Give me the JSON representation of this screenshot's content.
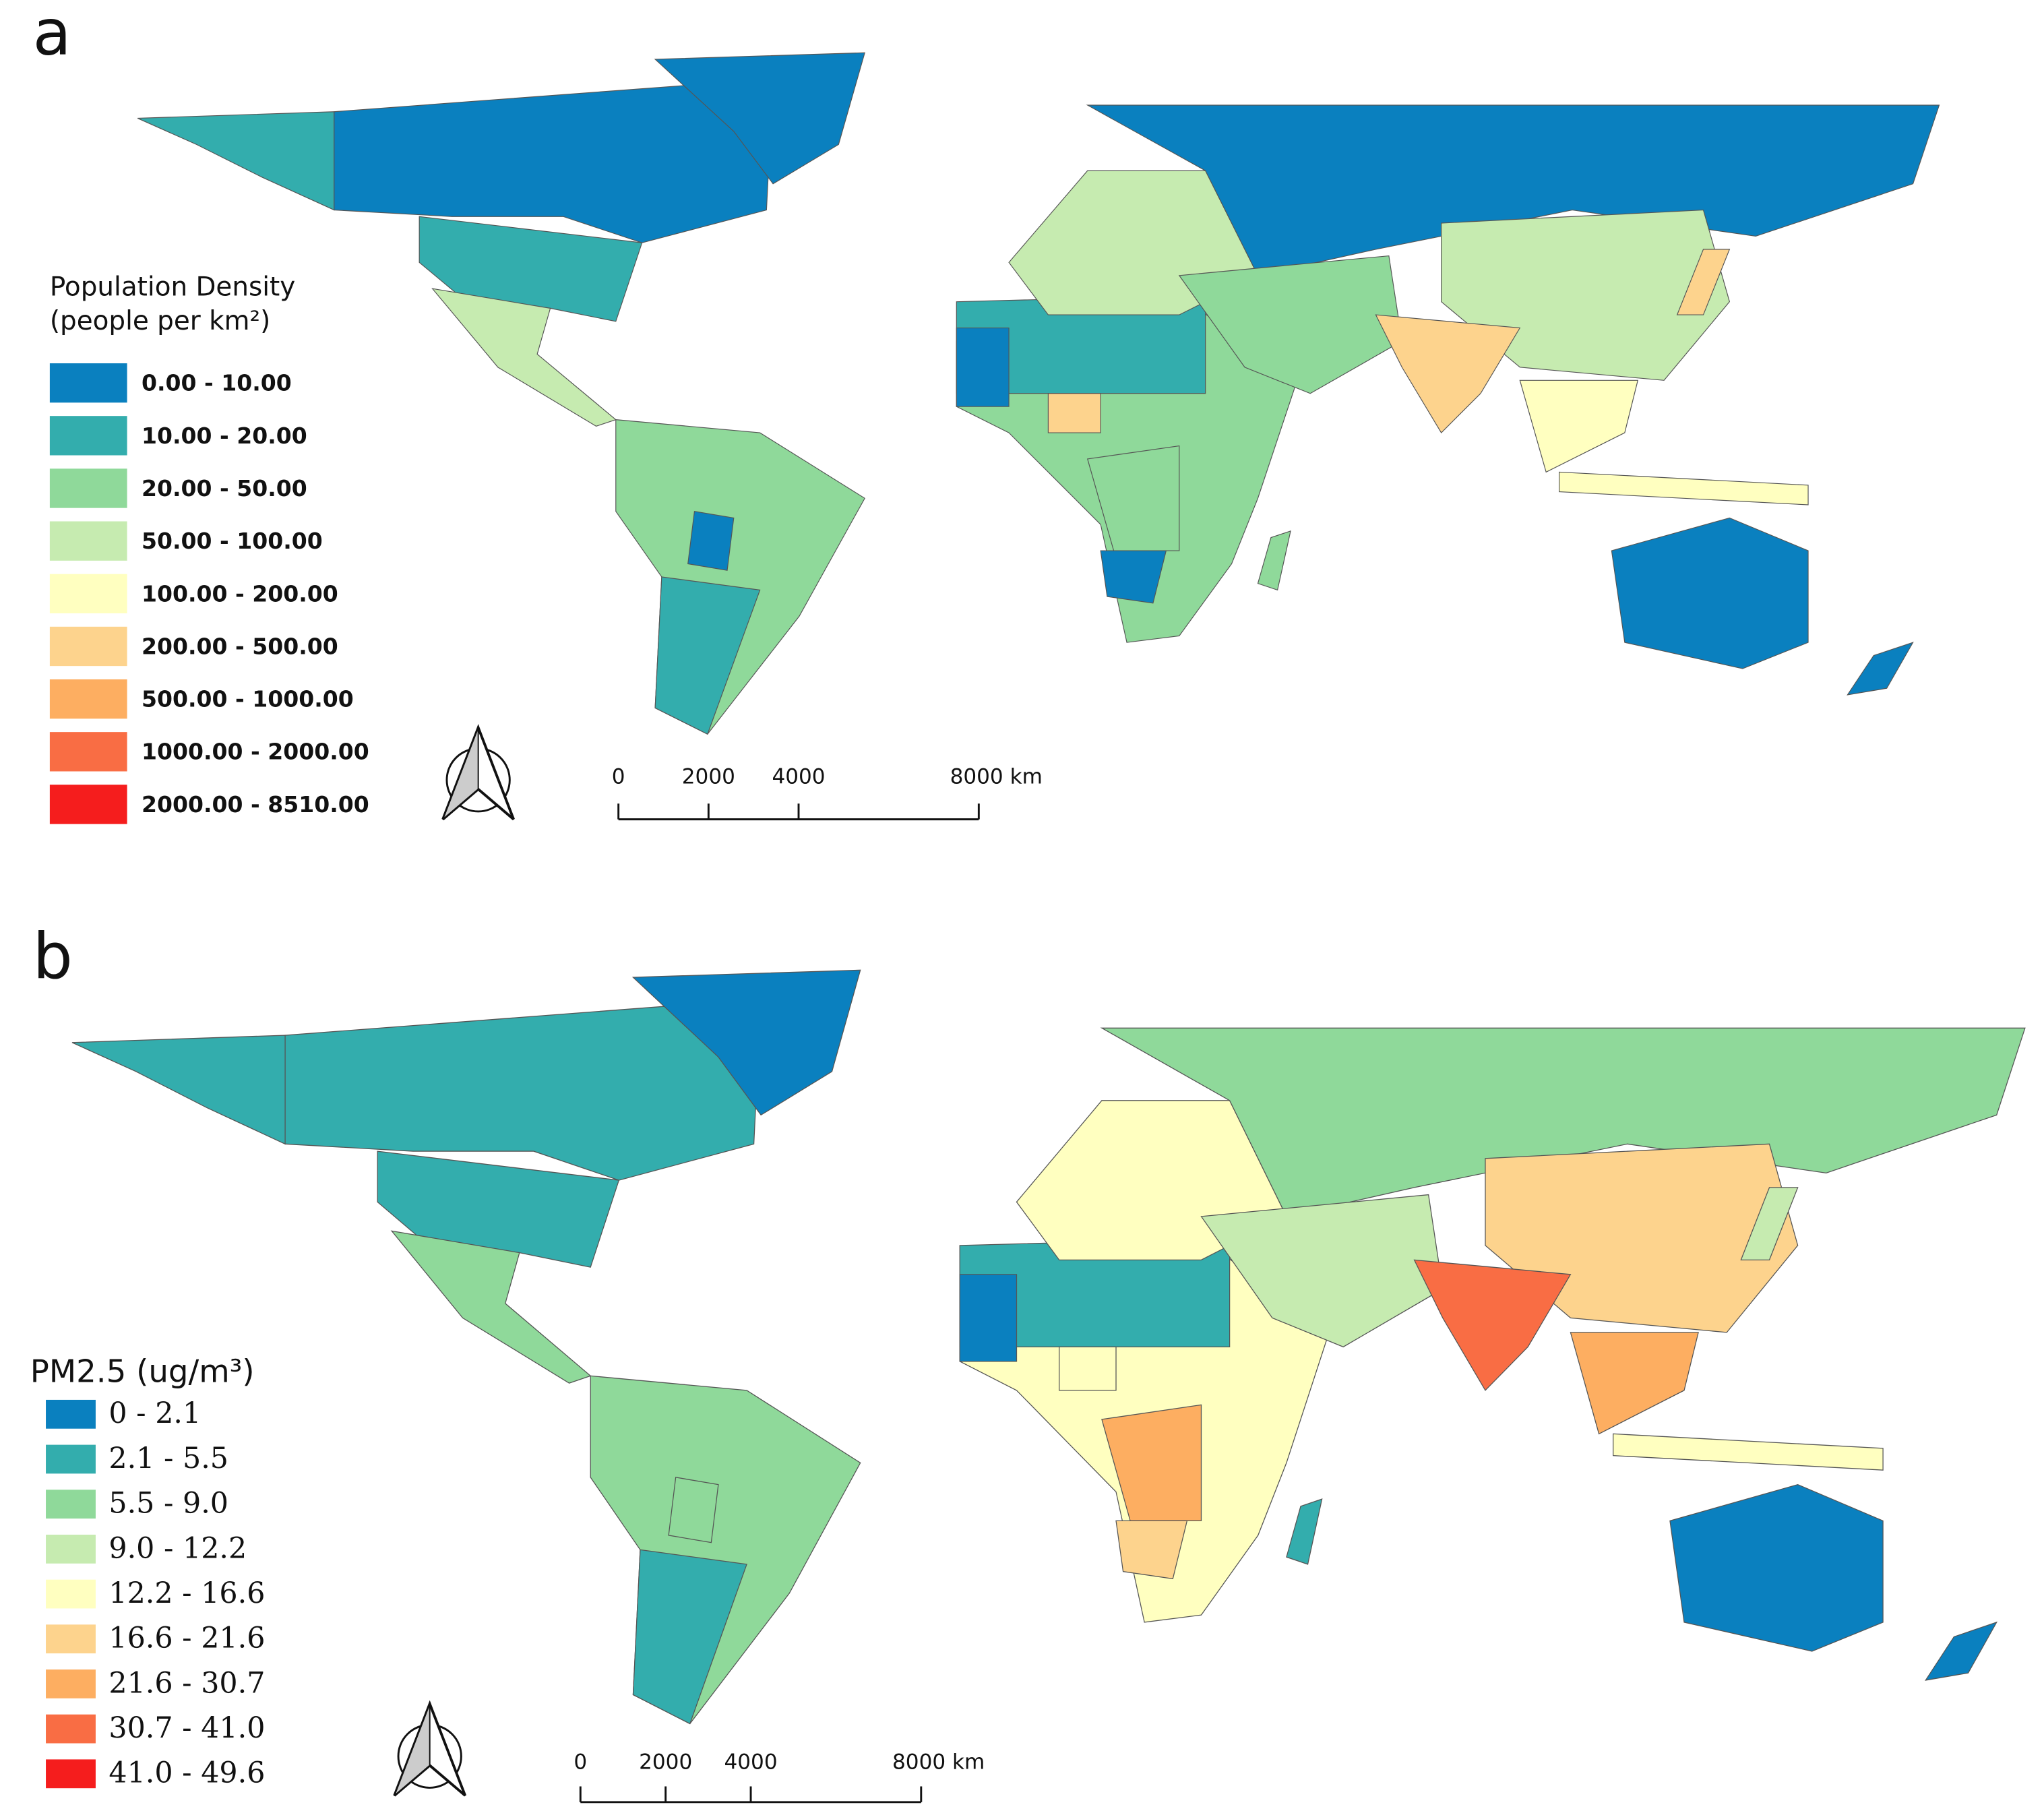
{
  "panels": [
    {
      "label": "a",
      "legend": {
        "title": "Population Density",
        "subtitle": "(people per km²)",
        "items": [
          {
            "label": "0.00 - 10.00",
            "color": "#0a80bf"
          },
          {
            "label": "10.00 - 20.00",
            "color": "#33adad"
          },
          {
            "label": "20.00 - 50.00",
            "color": "#8fd99a"
          },
          {
            "label": "50.00 - 100.00",
            "color": "#c6ebb0"
          },
          {
            "label": "100.00 - 200.00",
            "color": "#ffffc0"
          },
          {
            "label": "200.00 - 500.00",
            "color": "#fdd38d"
          },
          {
            "label": "500.00 - 1000.00",
            "color": "#fdae61"
          },
          {
            "label": "1000.00 - 2000.00",
            "color": "#f96d44"
          },
          {
            "label": "2000.00 - 8510.00",
            "color": "#f51d1d"
          }
        ]
      },
      "scale_bar": {
        "ticks": [
          0,
          2000,
          4000,
          {
            "value": 8000,
            "label": "8000 km"
          }
        ]
      }
    },
    {
      "label": "b",
      "legend": {
        "title": "PM2.5 (ug/m³)",
        "items": [
          {
            "label": "0 - 2.1",
            "color": "#0a80bf"
          },
          {
            "label": "2.1 - 5.5",
            "color": "#33adad"
          },
          {
            "label": "5.5 - 9.0",
            "color": "#8fd99a"
          },
          {
            "label": "9.0 - 12.2",
            "color": "#c6ebb0"
          },
          {
            "label": "12.2 - 16.6",
            "color": "#ffffc0"
          },
          {
            "label": "16.6 - 21.6",
            "color": "#fdd38d"
          },
          {
            "label": "21.6 - 30.7",
            "color": "#fdae61"
          },
          {
            "label": "30.7 - 41.0",
            "color": "#f96d44"
          },
          {
            "label": "41.0 - 49.6",
            "color": "#f51d1d"
          }
        ]
      },
      "scale_bar": {
        "ticks": [
          0,
          2000,
          4000,
          {
            "value": 8000,
            "label": "8000 km"
          }
        ]
      }
    }
  ]
}
